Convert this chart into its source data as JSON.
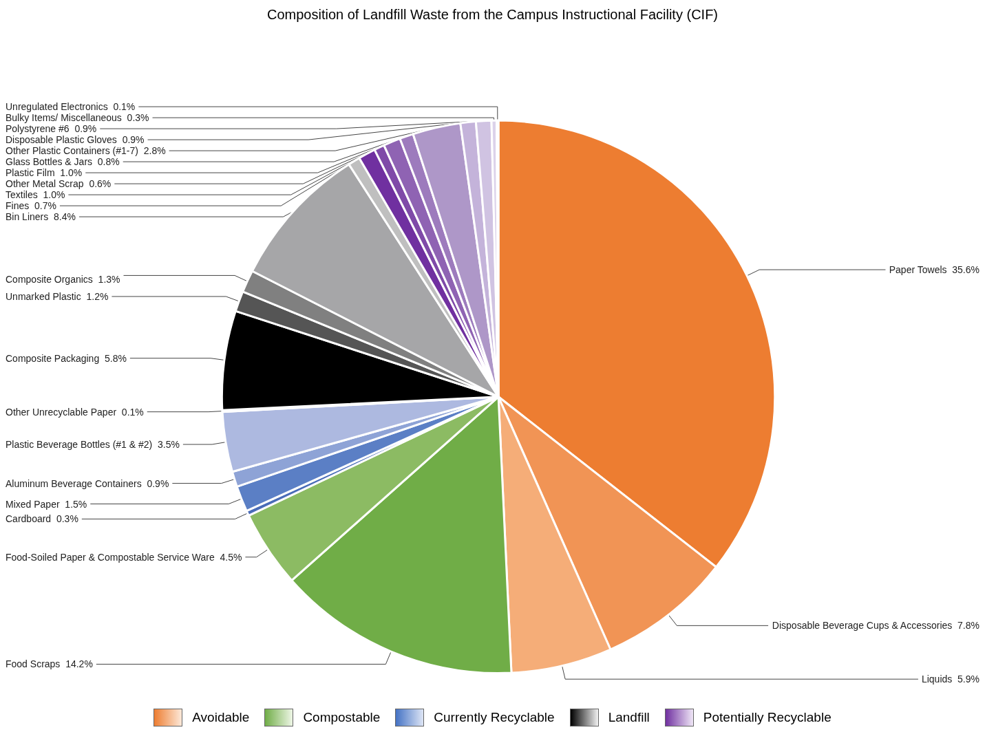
{
  "chart_data": {
    "type": "pie",
    "title": "Composition of Landfill Waste from the Campus Instructional Facility (CIF)",
    "categories": [
      "Paper Towels",
      "Disposable Beverage Cups & Accessories",
      "Liquids",
      "Food Scraps",
      "Food-Soiled Paper & Compostable Service Ware",
      "Cardboard",
      "Mixed Paper",
      "Aluminum Beverage Containers",
      "Plastic Beverage Bottles (#1 & #2)",
      "Other Unrecyclable Paper",
      "Composite Packaging",
      "Unmarked Plastic",
      "Composite Organics",
      "Bin Liners",
      "Fines",
      "Textiles",
      "Other Metal Scrap",
      "Plastic Film",
      "Glass Bottles & Jars",
      "Other Plastic Containers (#1-7)",
      "Disposable Plastic Gloves",
      "Polystyrene #6",
      "Bulky Items/ Miscellaneous",
      "Unregulated Electronics"
    ],
    "values": [
      35.6,
      7.8,
      5.9,
      14.2,
      4.5,
      0.3,
      1.5,
      0.9,
      3.5,
      0.1,
      5.8,
      1.2,
      1.3,
      8.4,
      0.7,
      1.0,
      0.6,
      1.0,
      0.8,
      2.8,
      0.9,
      0.9,
      0.3,
      0.1
    ],
    "colors": [
      "#ed7d31",
      "#f19455",
      "#f5ad78",
      "#70ad47",
      "#8cbb63",
      "#4a6cb8",
      "#5b7fc5",
      "#8ea3d6",
      "#adb9e0",
      "#d0d6ee",
      "#000000",
      "#555555",
      "#808080",
      "#a6a6a8",
      "#bfbfbf",
      "#7030a0",
      "#7f4aa8",
      "#8f63b3",
      "#9d7bbd",
      "#ae97c8",
      "#c4b3da",
      "#d0c3e2",
      "#dcd2ea",
      "#e8e2f2"
    ],
    "value_labels": [
      "35.6%",
      "7.8%",
      "5.9%",
      "14.2%",
      "4.5%",
      "0.3%",
      "1.5%",
      "0.9%",
      "3.5%",
      "0.1%",
      "5.8%",
      "1.2%",
      "1.3%",
      "8.4%",
      "0.7%",
      "1.0%",
      "0.6%",
      "1.0%",
      "0.8%",
      "2.8%",
      "0.9%",
      "0.9%",
      "0.3%",
      "0.1%"
    ],
    "legend": false,
    "annotations": [
      "Avoidable",
      "Compostable",
      "Currently Recyclable",
      "Landfill",
      "Potentially Recyclable"
    ]
  }
}
